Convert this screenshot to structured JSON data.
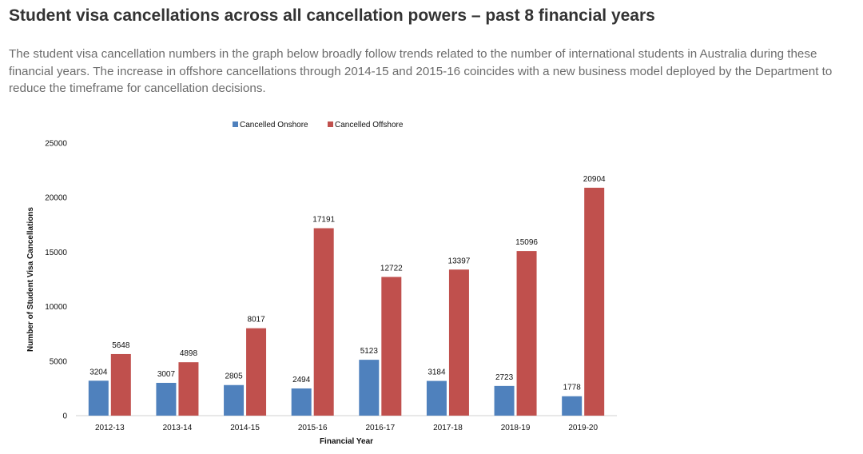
{
  "page": {
    "heading": "Student visa cancellations across all cancellation powers – past 8 financial years",
    "intro": "The student visa cancellation numbers in the graph below broadly follow trends related to the number of international students in Australia during these financial years. The increase in offshore cancellations through 2014-15 and 2015-16 coincides with a new business model deployed by the Department to reduce the timeframe for cancellation decisions."
  },
  "chart_data": {
    "type": "bar",
    "categories": [
      "2012-13",
      "2013-14",
      "2014-15",
      "2015-16",
      "2016-17",
      "2017-18",
      "2018-19",
      "2019-20"
    ],
    "series": [
      {
        "name": "Cancelled Onshore",
        "color": "#4f81bd",
        "values": [
          3204,
          3007,
          2805,
          2494,
          5123,
          3184,
          2723,
          1778
        ]
      },
      {
        "name": "Cancelled Offshore",
        "color": "#c0504d",
        "values": [
          5648,
          4898,
          8017,
          17191,
          12722,
          13397,
          15096,
          20904
        ]
      }
    ],
    "xlabel": "Financial Year",
    "ylabel": "Number of Student Visa Cancellations",
    "ylim": [
      0,
      25000
    ],
    "yticks": [
      0,
      5000,
      10000,
      15000,
      20000,
      25000
    ],
    "legend": "top",
    "grid": false,
    "data_labels": true
  }
}
